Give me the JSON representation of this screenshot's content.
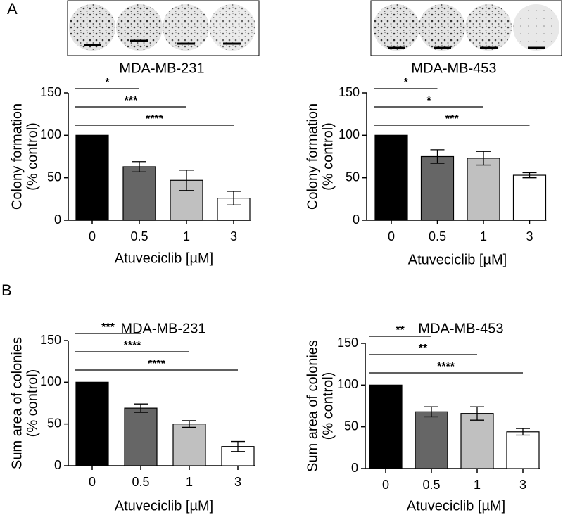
{
  "panel_labels": [
    "A",
    "B"
  ],
  "chart_data": [
    {
      "type": "bar",
      "title": "MDA-MB-231",
      "x_label": "Atuveciclib [µM]",
      "y_label": [
        "Colony formation",
        "(% control)"
      ],
      "categories": [
        "0",
        "0.5",
        "1",
        "3"
      ],
      "values": [
        100,
        63,
        47,
        26
      ],
      "errors": [
        0,
        6,
        12,
        8
      ],
      "colors": [
        "#000000",
        "#666666",
        "#c0c0c0",
        "#ffffff"
      ],
      "ylim": [
        0,
        150
      ],
      "yticks": [
        0,
        50,
        100,
        150
      ],
      "significance": [
        "*",
        "***",
        "****"
      ]
    },
    {
      "type": "bar",
      "title": "MDA-MB-453",
      "x_label": "Atuveciclib [µM]",
      "y_label": [
        "Colony formation",
        "(% control)"
      ],
      "categories": [
        "0",
        "0.5",
        "1",
        "3"
      ],
      "values": [
        100,
        75,
        73,
        53
      ],
      "errors": [
        0,
        8,
        8,
        3
      ],
      "colors": [
        "#000000",
        "#666666",
        "#c0c0c0",
        "#ffffff"
      ],
      "ylim": [
        0,
        150
      ],
      "yticks": [
        0,
        50,
        100,
        150
      ],
      "significance": [
        "*",
        "*",
        "***"
      ]
    },
    {
      "type": "bar",
      "title": "MDA-MB-231",
      "x_label": "Atuveciclib [µM]",
      "y_label": [
        "Sum area of colonies",
        "(% control)"
      ],
      "categories": [
        "0",
        "0.5",
        "1",
        "3"
      ],
      "values": [
        100,
        69,
        50,
        23
      ],
      "errors": [
        0,
        5,
        4,
        6
      ],
      "colors": [
        "#000000",
        "#666666",
        "#c0c0c0",
        "#ffffff"
      ],
      "ylim": [
        0,
        150
      ],
      "yticks": [
        0,
        50,
        100,
        150
      ],
      "significance": [
        "***",
        "****",
        "****"
      ]
    },
    {
      "type": "bar",
      "title": "MDA-MB-453",
      "x_label": "Atuveciclib [µM]",
      "y_label": [
        "Sum area of colonies",
        "(% control)"
      ],
      "categories": [
        "0",
        "0.5",
        "1",
        "3"
      ],
      "values": [
        100,
        68,
        66,
        44
      ],
      "errors": [
        0,
        6,
        8,
        4
      ],
      "colors": [
        "#000000",
        "#666666",
        "#c0c0c0",
        "#ffffff"
      ],
      "ylim": [
        0,
        150
      ],
      "yticks": [
        0,
        50,
        100,
        150
      ],
      "significance": [
        "**",
        "**",
        "****"
      ]
    }
  ]
}
